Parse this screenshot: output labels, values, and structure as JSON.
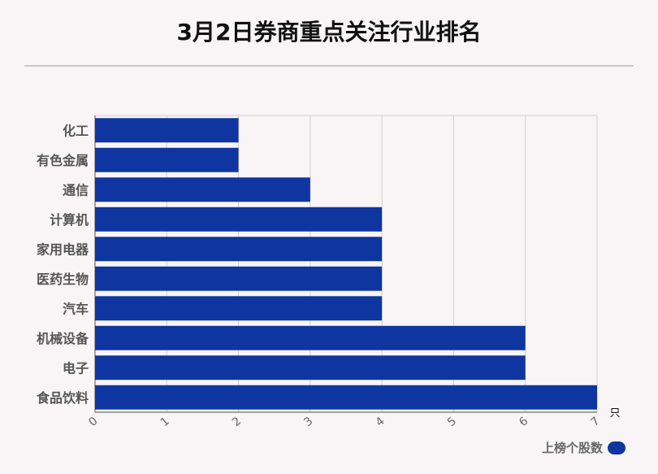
{
  "title": "3月2日券商重点关注行业排名",
  "chart_data": {
    "type": "bar",
    "orientation": "horizontal",
    "categories": [
      "化工",
      "有色金属",
      "通信",
      "计算机",
      "家用电器",
      "医药生物",
      "汽车",
      "机械设备",
      "电子",
      "食品饮料"
    ],
    "series": [
      {
        "name": "上榜个股数",
        "values": [
          2,
          2,
          3,
          4,
          4,
          4,
          4,
          6,
          6,
          7
        ]
      }
    ],
    "x_ticks": [
      "0",
      "1",
      "2",
      "3",
      "4",
      "5",
      "6",
      "7"
    ],
    "xlim": [
      0,
      7
    ],
    "unit_label": "只",
    "grid": true,
    "legend_position": "bottom-right",
    "bar_color": "#0f35a0"
  }
}
